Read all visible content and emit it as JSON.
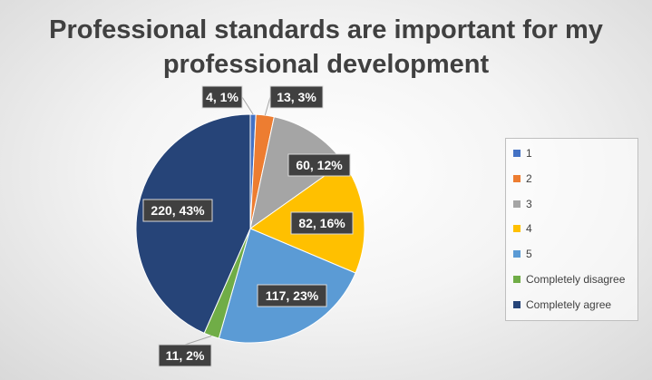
{
  "chart_data": {
    "type": "pie",
    "title": "Professional standards are important for my professional development",
    "categories": [
      "1",
      "2",
      "3",
      "4",
      "5",
      "Completely disagree",
      "Completely agree"
    ],
    "values": [
      4,
      13,
      60,
      82,
      117,
      11,
      220
    ],
    "percent_labels": [
      "1%",
      "3%",
      "12%",
      "16%",
      "23%",
      "2%",
      "43%"
    ],
    "data_labels": [
      "4, 1%",
      "13, 3%",
      "60, 12%",
      "82, 16%",
      "117, 23%",
      "11, 2%",
      "220, 43%"
    ],
    "colors": [
      "#4472C4",
      "#ED7D31",
      "#A5A5A5",
      "#FFC000",
      "#5B9BD5",
      "#70AD47",
      "#264478"
    ],
    "legend_position": "right"
  }
}
